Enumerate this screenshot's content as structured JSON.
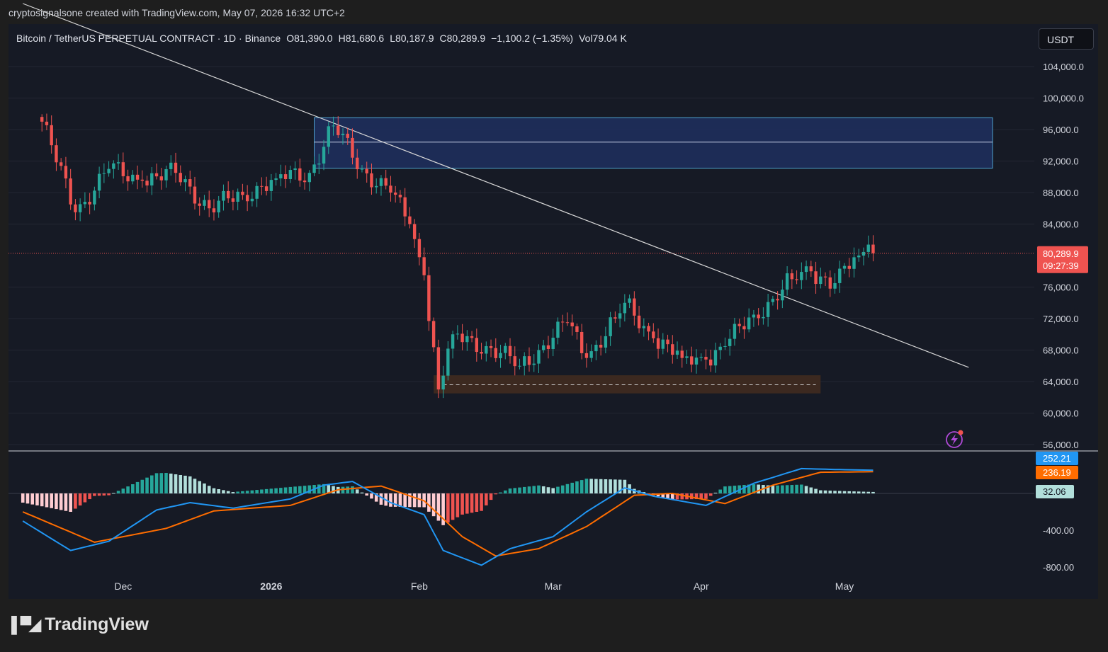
{
  "header": {
    "credit": "cryptosignalsone created with TradingView.com, May 07, 2026 16:32 UTC+2",
    "symbol": "Bitcoin / TetherUS PERPETUAL CONTRACT · 1D · Binance",
    "open": "O81,390.0",
    "high": "H81,680.6",
    "low": "L80,187.9",
    "close": "C80,289.9",
    "change": "−1,100.2 (−1.35%)",
    "volume": "Vol79.04 K"
  },
  "currency_button": "USDT",
  "brand": "TradingView",
  "colors": {
    "up": "#26a69a",
    "down": "#ef5350",
    "macd_line": "#2196f3",
    "signal_line": "#ff6d00",
    "zone_fill": "#1e2f5c",
    "zone_border": "#4fa3d1",
    "support_fill": "#3e2a20"
  },
  "chart_data": [
    {
      "type": "candlestick",
      "title": "Bitcoin / TetherUS PERPETUAL CONTRACT · 1D · Binance",
      "price_axis_ticks": [
        "104,000.0",
        "100,000.0",
        "96,000.0",
        "92,000.0",
        "88,000.0",
        "84,000.0",
        "76,000.0",
        "72,000.0",
        "68,000.0",
        "64,000.0",
        "60,000.0",
        "56,000.0"
      ],
      "ylim": [
        54000,
        108000
      ],
      "time_axis_labels": [
        "Dec",
        "2026",
        "Feb",
        "Mar",
        "Apr",
        "May"
      ],
      "last_price_label": "80,289.9",
      "countdown_label": "09:27:39",
      "resistance_zone": [
        91100,
        97500
      ],
      "resistance_midline": 94400,
      "support_zone": [
        62500,
        64800
      ],
      "support_midline": 63600,
      "trendline": {
        "from": [
          "2025-11-10",
          112000
        ],
        "to": [
          "2026-05-27",
          65800
        ]
      },
      "series_close_anchors": [
        [
          "2025-11-14",
          97000
        ],
        [
          "2025-11-21",
          85500
        ],
        [
          "2025-11-28",
          91000
        ],
        [
          "2025-12-05",
          89500
        ],
        [
          "2025-12-12",
          90500
        ],
        [
          "2025-12-19",
          86000
        ],
        [
          "2025-12-26",
          87700
        ],
        [
          "2026-01-02",
          89800
        ],
        [
          "2026-01-09",
          90500
        ],
        [
          "2026-01-14",
          96500
        ],
        [
          "2026-01-20",
          91000
        ],
        [
          "2026-01-26",
          88000
        ],
        [
          "2026-01-30",
          84000
        ],
        [
          "2026-02-02",
          77500
        ],
        [
          "2026-02-05",
          63000
        ],
        [
          "2026-02-08",
          70000
        ],
        [
          "2026-02-15",
          68500
        ],
        [
          "2026-02-22",
          66000
        ],
        [
          "2026-02-26",
          68000
        ],
        [
          "2026-03-04",
          71500
        ],
        [
          "2026-03-08",
          67000
        ],
        [
          "2026-03-14",
          72000
        ],
        [
          "2026-03-16",
          74000
        ],
        [
          "2026-03-22",
          69500
        ],
        [
          "2026-03-28",
          67000
        ],
        [
          "2026-04-02",
          66800
        ],
        [
          "2026-04-06",
          68500
        ],
        [
          "2026-04-12",
          72500
        ],
        [
          "2026-04-16",
          74500
        ],
        [
          "2026-04-20",
          77000
        ],
        [
          "2026-04-24",
          78000
        ],
        [
          "2026-04-29",
          76500
        ],
        [
          "2026-05-04",
          80000
        ],
        [
          "2026-05-06",
          81390
        ],
        [
          "2026-05-07",
          80289.9
        ]
      ]
    },
    {
      "type": "macd",
      "value_axis_ticks": [
        "-400.00",
        "-800.00"
      ],
      "macd_label": "252.21",
      "signal_label": "236.19",
      "histogram_label": "32.06",
      "macd_anchors": [
        [
          "2025-11-10",
          -300
        ],
        [
          "2025-11-20",
          -620
        ],
        [
          "2025-11-28",
          -520
        ],
        [
          "2025-12-08",
          -180
        ],
        [
          "2025-12-15",
          -100
        ],
        [
          "2025-12-24",
          -160
        ],
        [
          "2026-01-05",
          -60
        ],
        [
          "2026-01-12",
          90
        ],
        [
          "2026-01-18",
          130
        ],
        [
          "2026-01-26",
          -100
        ],
        [
          "2026-02-02",
          -230
        ],
        [
          "2026-02-06",
          -620
        ],
        [
          "2026-02-14",
          -780
        ],
        [
          "2026-02-20",
          -600
        ],
        [
          "2026-03-01",
          -470
        ],
        [
          "2026-03-08",
          -200
        ],
        [
          "2026-03-16",
          60
        ],
        [
          "2026-03-22",
          -30
        ],
        [
          "2026-04-02",
          -130
        ],
        [
          "2026-04-12",
          110
        ],
        [
          "2026-04-22",
          270
        ],
        [
          "2026-04-29",
          260
        ],
        [
          "2026-05-07",
          252
        ]
      ],
      "signal_anchors": [
        [
          "2025-11-10",
          -200
        ],
        [
          "2025-11-25",
          -530
        ],
        [
          "2025-12-10",
          -380
        ],
        [
          "2025-12-20",
          -190
        ],
        [
          "2026-01-05",
          -130
        ],
        [
          "2026-01-15",
          40
        ],
        [
          "2026-01-24",
          80
        ],
        [
          "2026-02-02",
          -80
        ],
        [
          "2026-02-10",
          -470
        ],
        [
          "2026-02-17",
          -680
        ],
        [
          "2026-02-26",
          -600
        ],
        [
          "2026-03-08",
          -360
        ],
        [
          "2026-03-18",
          -20
        ],
        [
          "2026-03-26",
          0
        ],
        [
          "2026-04-06",
          -110
        ],
        [
          "2026-04-16",
          90
        ],
        [
          "2026-04-26",
          230
        ],
        [
          "2026-05-07",
          236
        ]
      ]
    }
  ]
}
